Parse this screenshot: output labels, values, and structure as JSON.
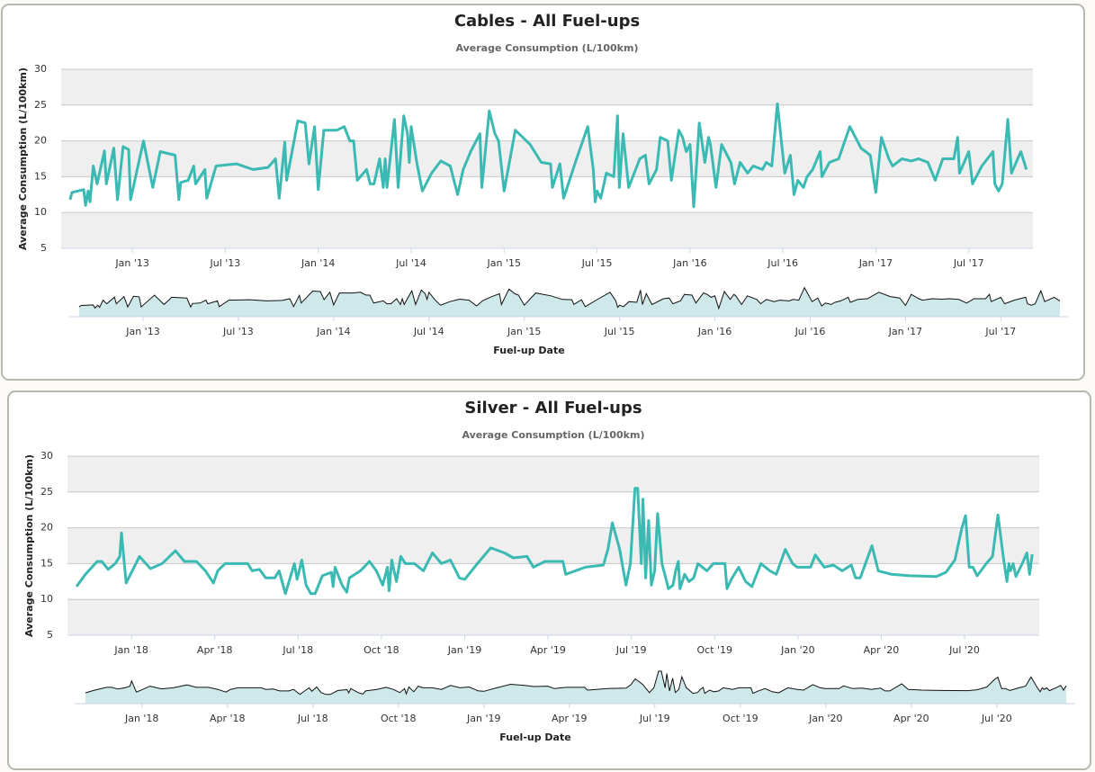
{
  "chart_data": [
    {
      "type": "line",
      "title": "Cables - All Fuel-ups",
      "subtitle": "Average Consumption (L/100km)",
      "ylabel": "Average Consumption (L/100km)",
      "xlabel": "Fuel-up Date",
      "color": "#3bb9b3",
      "grid": true,
      "navigator": true,
      "xlim": [
        2012.617,
        2017.845
      ],
      "ylim": [
        5,
        30
      ],
      "yticks": [
        5,
        10,
        15,
        20,
        25,
        30
      ],
      "xticks": [
        {
          "value": 2013,
          "label": "Jan '13"
        },
        {
          "value": 2013.5,
          "label": "Jul '13"
        },
        {
          "value": 2014,
          "label": "Jan '14"
        },
        {
          "value": 2014.5,
          "label": "Jul '14"
        },
        {
          "value": 2015,
          "label": "Jan '15"
        },
        {
          "value": 2015.5,
          "label": "Jul '15"
        },
        {
          "value": 2016,
          "label": "Jan '16"
        },
        {
          "value": 2016.5,
          "label": "Jul '16"
        },
        {
          "value": 2017,
          "label": "Jan '17"
        },
        {
          "value": 2017.5,
          "label": "Jul '17"
        }
      ],
      "x": [
        2012.665,
        2012.675,
        2012.738,
        2012.748,
        2012.762,
        2012.772,
        2012.79,
        2012.81,
        2012.85,
        2012.86,
        2012.9,
        2012.92,
        2012.95,
        2012.98,
        2012.99,
        2013.06,
        2013.11,
        2013.15,
        2013.23,
        2013.25,
        2013.26,
        2013.3,
        2013.33,
        2013.34,
        2013.39,
        2013.4,
        2013.45,
        2013.56,
        2013.65,
        2013.73,
        2013.77,
        2013.79,
        2013.82,
        2013.83,
        2013.89,
        2013.93,
        2013.95,
        2013.98,
        2014.0,
        2014.03,
        2014.1,
        2014.14,
        2014.17,
        2014.19,
        2014.21,
        2014.26,
        2014.28,
        2014.3,
        2014.33,
        2014.35,
        2014.36,
        2014.37,
        2014.41,
        2014.43,
        2014.46,
        2014.48,
        2014.49,
        2014.5,
        2014.53,
        2014.56,
        2014.61,
        2014.66,
        2014.71,
        2014.75,
        2014.78,
        2014.82,
        2014.87,
        2014.88,
        2014.92,
        2014.95,
        2014.97,
        2015.0,
        2015.06,
        2015.14,
        2015.2,
        2015.25,
        2015.26,
        2015.3,
        2015.32,
        2015.39,
        2015.45,
        2015.48,
        2015.49,
        2015.5,
        2015.52,
        2015.55,
        2015.59,
        2015.61,
        2015.62,
        2015.64,
        2015.67,
        2015.73,
        2015.76,
        2015.78,
        2015.82,
        2015.84,
        2015.88,
        2015.9,
        2015.92,
        2015.94,
        2015.96,
        2015.98,
        2016.0,
        2016.02,
        2016.05,
        2016.08,
        2016.1,
        2016.11,
        2016.14,
        2016.17,
        2016.22,
        2016.24,
        2016.27,
        2016.31,
        2016.34,
        2016.39,
        2016.41,
        2016.44,
        2016.47,
        2016.51,
        2016.54,
        2016.56,
        2016.58,
        2016.61,
        2016.63,
        2016.66,
        2016.7,
        2016.71,
        2016.75,
        2016.8,
        2016.86,
        2016.92,
        2016.97,
        2017.0,
        2017.03,
        2017.07,
        2017.09,
        2017.14,
        2017.19,
        2017.23,
        2017.28,
        2017.32,
        2017.36,
        2017.42,
        2017.44,
        2017.45,
        2017.5,
        2017.52,
        2017.57,
        2017.63,
        2017.64,
        2017.66,
        2017.68,
        2017.71,
        2017.73,
        2017.78,
        2017.81
      ],
      "values": [
        11.8,
        12.8,
        13.2,
        11.0,
        13.0,
        11.5,
        16.5,
        14,
        18.6,
        14,
        19,
        11.8,
        19.2,
        18.8,
        11.8,
        20.0,
        13.5,
        18.5,
        18.0,
        11.8,
        14.2,
        14.5,
        16.5,
        14,
        16,
        12,
        16.5,
        16.8,
        16.0,
        16.3,
        17.5,
        12.0,
        19.8,
        14.5,
        22.8,
        22.5,
        16.8,
        22.0,
        13.2,
        21.5,
        21.5,
        22.0,
        20.0,
        20.0,
        14.5,
        16.0,
        14.0,
        14.0,
        17.5,
        13.5,
        17.5,
        13.5,
        23.0,
        13.5,
        23.5,
        21.0,
        17.0,
        22.0,
        17.0,
        13.0,
        15.5,
        17.2,
        16.5,
        12.5,
        16.0,
        18.5,
        21.0,
        13.5,
        24.2,
        21.0,
        20.0,
        13.0,
        21.5,
        19.5,
        17.0,
        16.8,
        13.5,
        16.8,
        12.0,
        17.5,
        22.0,
        16.0,
        11.5,
        13.0,
        12.0,
        15.5,
        15.0,
        23.5,
        13.5,
        21.0,
        13.5,
        17.5,
        18.0,
        14.0,
        16.0,
        20.5,
        20.0,
        14.5,
        18.0,
        21.5,
        20.5,
        18.5,
        19.5,
        10.8,
        22.5,
        17.0,
        20.5,
        19.5,
        13.5,
        19.5,
        17.0,
        14.0,
        17.0,
        15.5,
        16.5,
        16.0,
        17.0,
        16.5,
        25.2,
        15.5,
        18.0,
        12.5,
        14.5,
        13.5,
        15.0,
        16.0,
        18.5,
        15.0,
        17.0,
        17.5,
        22.0,
        19.0,
        18.0,
        12.8,
        20.5,
        17.5,
        16.5,
        17.5,
        17.2,
        17.5,
        17.0,
        14.5,
        17.5,
        17.5,
        20.5,
        15.5,
        18.5,
        14.0,
        16.5,
        18.5,
        14.0,
        13.0,
        14.0,
        23.0,
        15.5,
        18.5,
        16.0
      ]
    },
    {
      "type": "line",
      "title": "Silver - All Fuel-ups",
      "subtitle": "Average Consumption (L/100km)",
      "ylabel": "Average Consumption (L/100km)",
      "xlabel": "Fuel-up Date",
      "color": "#3bb9b3",
      "grid": true,
      "navigator": true,
      "xlim": [
        2017.808,
        2020.724
      ],
      "ylim": [
        5,
        30
      ],
      "yticks": [
        5,
        10,
        15,
        20,
        25,
        30
      ],
      "xticks": [
        {
          "value": 2018,
          "label": "Jan '18"
        },
        {
          "value": 2018.25,
          "label": "Apr '18"
        },
        {
          "value": 2018.5,
          "label": "Jul '18"
        },
        {
          "value": 2018.75,
          "label": "Oct '18"
        },
        {
          "value": 2019,
          "label": "Jan '19"
        },
        {
          "value": 2019.25,
          "label": "Apr '19"
        },
        {
          "value": 2019.5,
          "label": "Jul '19"
        },
        {
          "value": 2019.75,
          "label": "Oct '19"
        },
        {
          "value": 2020,
          "label": "Jan '20"
        },
        {
          "value": 2020.25,
          "label": "Apr '20"
        },
        {
          "value": 2020.5,
          "label": "Jul '20"
        }
      ],
      "x": [
        2017.835,
        2017.862,
        2017.897,
        2017.911,
        2017.93,
        2017.951,
        2017.965,
        2017.97,
        2017.984,
        2018.024,
        2018.057,
        2018.092,
        2018.132,
        2018.159,
        2018.195,
        2018.222,
        2018.246,
        2018.259,
        2018.281,
        2018.349,
        2018.362,
        2018.384,
        2018.403,
        2018.43,
        2018.443,
        2018.449,
        2018.462,
        2018.476,
        2018.489,
        2018.497,
        2018.511,
        2018.524,
        2018.538,
        2018.551,
        2018.573,
        2018.6,
        2018.605,
        2018.611,
        2018.632,
        2018.646,
        2018.654,
        2018.687,
        2018.714,
        2018.735,
        2018.754,
        2018.768,
        2018.773,
        2018.781,
        2018.795,
        2018.808,
        2018.822,
        2018.849,
        2018.876,
        2018.903,
        2018.93,
        2018.957,
        2018.984,
        2019.0,
        2019.038,
        2019.078,
        2019.119,
        2019.146,
        2019.187,
        2019.206,
        2019.241,
        2019.295,
        2019.303,
        2019.362,
        2019.416,
        2019.43,
        2019.443,
        2019.465,
        2019.484,
        2019.497,
        2019.511,
        2019.519,
        2019.53,
        2019.535,
        2019.543,
        2019.552,
        2019.56,
        2019.57,
        2019.579,
        2019.592,
        2019.606,
        2019.611,
        2019.625,
        2019.633,
        2019.641,
        2019.646,
        2019.66,
        2019.673,
        2019.687,
        2019.7,
        2019.727,
        2019.746,
        2019.781,
        2019.787,
        2019.8,
        2019.822,
        2019.843,
        2019.862,
        2019.889,
        2019.916,
        2019.935,
        2019.962,
        2019.984,
        2019.998,
        2020.038,
        2020.052,
        2020.079,
        2020.106,
        2020.133,
        2020.16,
        2020.173,
        2020.187,
        2020.222,
        2020.241,
        2020.281,
        2020.335,
        2020.416,
        2020.444,
        2020.471,
        2020.492,
        2020.503,
        2020.514,
        2020.525,
        2020.538,
        2020.565,
        2020.584,
        2020.6,
        2020.616,
        2020.627,
        2020.633,
        2020.638,
        2020.646,
        2020.654,
        2020.673,
        2020.687,
        2020.695,
        2020.703
      ],
      "values": [
        11.8,
        13.5,
        15.3,
        15.3,
        14.2,
        15.0,
        16.0,
        19.3,
        12.3,
        16.0,
        14.3,
        15.0,
        16.8,
        15.3,
        15.3,
        14.0,
        12.3,
        14.0,
        15.0,
        15.0,
        14.0,
        14.2,
        13.0,
        13.0,
        14.0,
        13.0,
        10.8,
        13.0,
        15.0,
        12.8,
        15.5,
        12.0,
        10.8,
        10.8,
        13.3,
        13.8,
        11.8,
        14.5,
        12.0,
        11.0,
        13.0,
        14.0,
        15.3,
        14.0,
        12.0,
        14.5,
        11.2,
        15.5,
        12.5,
        16.0,
        15.0,
        15.0,
        14.0,
        16.5,
        15.0,
        15.5,
        13.0,
        12.8,
        15.0,
        17.2,
        16.5,
        15.8,
        16.0,
        14.5,
        15.3,
        15.3,
        13.5,
        14.5,
        14.8,
        17.0,
        20.7,
        17.0,
        12.0,
        15.0,
        25.5,
        25.5,
        15.0,
        24.0,
        13.0,
        21.0,
        12.0,
        14.0,
        22.0,
        15.0,
        12.5,
        11.5,
        12.0,
        14.0,
        15.3,
        11.5,
        13.5,
        12.5,
        13.0,
        15.0,
        14.0,
        15.0,
        15.0,
        11.5,
        12.8,
        14.5,
        12.5,
        11.8,
        15.0,
        14.0,
        13.5,
        17.0,
        15.0,
        14.5,
        14.5,
        16.2,
        14.5,
        14.8,
        14.0,
        14.8,
        13.0,
        13.0,
        17.5,
        14.0,
        13.5,
        13.3,
        13.2,
        13.8,
        15.5,
        20.0,
        21.7,
        14.5,
        14.5,
        13.3,
        15.0,
        16.0,
        21.8,
        16.0,
        12.5,
        15.0,
        14.0,
        15.0,
        13.2,
        15.0,
        16.5,
        13.5,
        16.3
      ]
    }
  ]
}
